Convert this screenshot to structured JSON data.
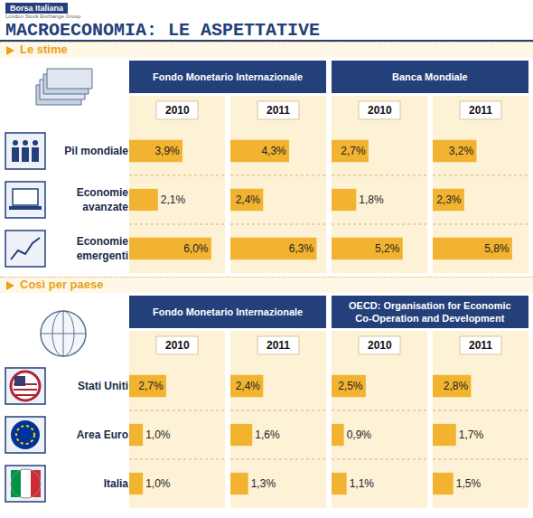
{
  "header": {
    "brand": "Borsa Italiana",
    "brand_sub": "London Stock Exchange Group",
    "title": "MACROECONOMIA: LE ASPETTATIVE"
  },
  "chart_data": [
    {
      "type": "bar",
      "orientation": "horizontal",
      "title": "Le stime",
      "categories": [
        "Pil mondiale",
        "Economie avanzate",
        "Economie emergenti"
      ],
      "groups": [
        {
          "name": "Fondo Monetario Internazionale",
          "series": [
            {
              "name": "2010",
              "values": [
                3.9,
                2.1,
                6.0
              ],
              "value_labels": [
                "3,9%",
                "2,1%",
                "6,0%"
              ]
            },
            {
              "name": "2011",
              "values": [
                4.3,
                2.4,
                6.3
              ],
              "value_labels": [
                "4,3%",
                "2,4%",
                "6,3%"
              ]
            }
          ]
        },
        {
          "name": "Banca Mondiale",
          "series": [
            {
              "name": "2010",
              "values": [
                2.7,
                1.8,
                5.2
              ],
              "value_labels": [
                "2,7%",
                "1,8%",
                "5,2%"
              ]
            },
            {
              "name": "2011",
              "values": [
                3.2,
                2.3,
                5.8
              ],
              "value_labels": [
                "3,2%",
                "2,3%",
                "5,8%"
              ]
            }
          ]
        }
      ],
      "xlim": [
        0,
        7
      ],
      "tick_labels": "y",
      "data_labels": true,
      "color": "#f2b330"
    },
    {
      "type": "bar",
      "orientation": "horizontal",
      "title": "Così per paese",
      "categories": [
        "Stati Uniti",
        "Area Euro",
        "Italia"
      ],
      "groups": [
        {
          "name": "Fondo Monetario Internazionale",
          "series": [
            {
              "name": "2010",
              "values": [
                2.7,
                1.0,
                1.0
              ],
              "value_labels": [
                "2,7%",
                "1,0%",
                "1,0%"
              ]
            },
            {
              "name": "2011",
              "values": [
                2.4,
                1.6,
                1.3
              ],
              "value_labels": [
                "2,4%",
                "1,6%",
                "1,3%"
              ]
            }
          ]
        },
        {
          "name": "OECD: Organisation for Economic Co-Operation and Development",
          "series": [
            {
              "name": "2010",
              "values": [
                2.5,
                0.9,
                1.1
              ],
              "value_labels": [
                "2,5%",
                "0,9%",
                "1,1%"
              ]
            },
            {
              "name": "2011",
              "values": [
                2.8,
                1.7,
                1.5
              ],
              "value_labels": [
                "2,8%",
                "1,7%",
                "1,5%"
              ]
            }
          ]
        }
      ],
      "xlim": [
        0,
        7
      ],
      "tick_labels": "y",
      "data_labels": true,
      "color": "#f2b330"
    }
  ]
}
